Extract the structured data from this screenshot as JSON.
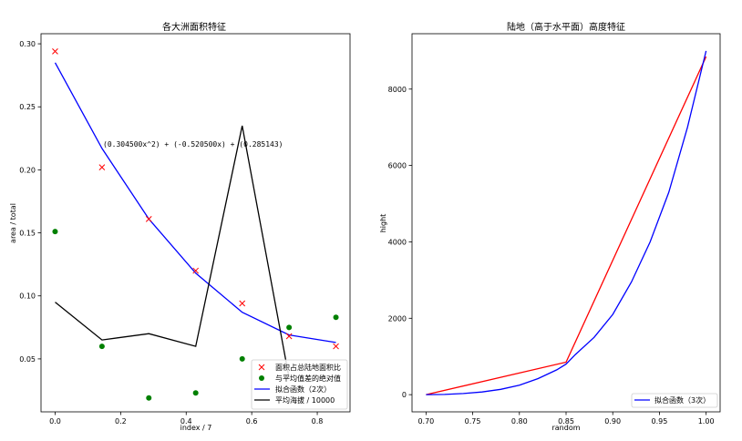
{
  "chart_data": [
    {
      "type": "scatter",
      "title": "各大洲面积特征",
      "xlabel": "index / 7",
      "ylabel": "area / total",
      "xlim": [
        -0.043,
        0.9
      ],
      "ylim": [
        0.008,
        0.308
      ],
      "xticks": [
        0.0,
        0.2,
        0.4,
        0.6,
        0.8
      ],
      "xtick_labels": [
        "0.0",
        "0.2",
        "0.4",
        "0.6",
        "0.8"
      ],
      "yticks": [
        0.05,
        0.1,
        0.15,
        0.2,
        0.25,
        0.3
      ],
      "ytick_labels": [
        "0.05",
        "0.10",
        "0.15",
        "0.20",
        "0.25",
        "0.30"
      ],
      "annotation": "(0.304500x^2) + (-0.520500x) + (0.285143)",
      "annotation_at": [
        0.143,
        0.218
      ],
      "legend_position": "lower-right",
      "series": [
        {
          "name": "面积占总陆地面积比",
          "kind": "scatter",
          "marker": "x",
          "color": "#ff0000",
          "x": [
            0.0,
            0.143,
            0.286,
            0.429,
            0.571,
            0.714,
            0.857
          ],
          "y": [
            0.294,
            0.202,
            0.161,
            0.12,
            0.094,
            0.068,
            0.06
          ]
        },
        {
          "name": "与平均值差的绝对值",
          "kind": "scatter",
          "marker": "o",
          "color": "#008000",
          "x": [
            0.0,
            0.143,
            0.286,
            0.429,
            0.571,
            0.714,
            0.857
          ],
          "y": [
            0.151,
            0.06,
            0.019,
            0.023,
            0.05,
            0.075,
            0.083
          ]
        },
        {
          "name": "拟合函数（2次）",
          "kind": "line",
          "color": "#0000ff",
          "x": [
            0.0,
            0.143,
            0.286,
            0.429,
            0.571,
            0.714,
            0.857
          ],
          "y": [
            0.285,
            0.217,
            0.161,
            0.118,
            0.087,
            0.069,
            0.063
          ]
        },
        {
          "name": "平均海拔 / 10000",
          "kind": "line",
          "color": "#000000",
          "x": [
            0.0,
            0.143,
            0.286,
            0.429,
            0.571,
            0.714
          ],
          "y": [
            0.095,
            0.065,
            0.07,
            0.06,
            0.235,
            0.035
          ]
        }
      ]
    },
    {
      "type": "line",
      "title": "陆地（高于水平面）高度特征",
      "xlabel": "random",
      "ylabel": "hight",
      "xlim": [
        0.685,
        1.015
      ],
      "ylim": [
        -450,
        9450
      ],
      "xticks": [
        0.7,
        0.75,
        0.8,
        0.85,
        0.9,
        0.95,
        1.0
      ],
      "xtick_labels": [
        "0.70",
        "0.75",
        "0.80",
        "0.85",
        "0.90",
        "0.95",
        "1.00"
      ],
      "yticks": [
        0,
        2000,
        4000,
        6000,
        8000
      ],
      "ytick_labels": [
        "0",
        "2000",
        "4000",
        "6000",
        "8000"
      ],
      "legend_position": "lower-right",
      "series": [
        {
          "name": "",
          "kind": "line",
          "color": "#ff0000",
          "x": [
            0.7,
            0.85,
            1.0
          ],
          "y": [
            0,
            850,
            8850
          ]
        },
        {
          "name": "拟合函数（3次）",
          "kind": "line",
          "color": "#0000ff",
          "x": [
            0.7,
            0.72,
            0.74,
            0.76,
            0.78,
            0.8,
            0.82,
            0.84,
            0.85,
            0.86,
            0.88,
            0.9,
            0.92,
            0.94,
            0.96,
            0.98,
            1.0
          ],
          "y": [
            0,
            5,
            30,
            70,
            140,
            250,
            420,
            650,
            800,
            1050,
            1500,
            2100,
            2950,
            4000,
            5300,
            7000,
            9000
          ]
        }
      ]
    }
  ]
}
